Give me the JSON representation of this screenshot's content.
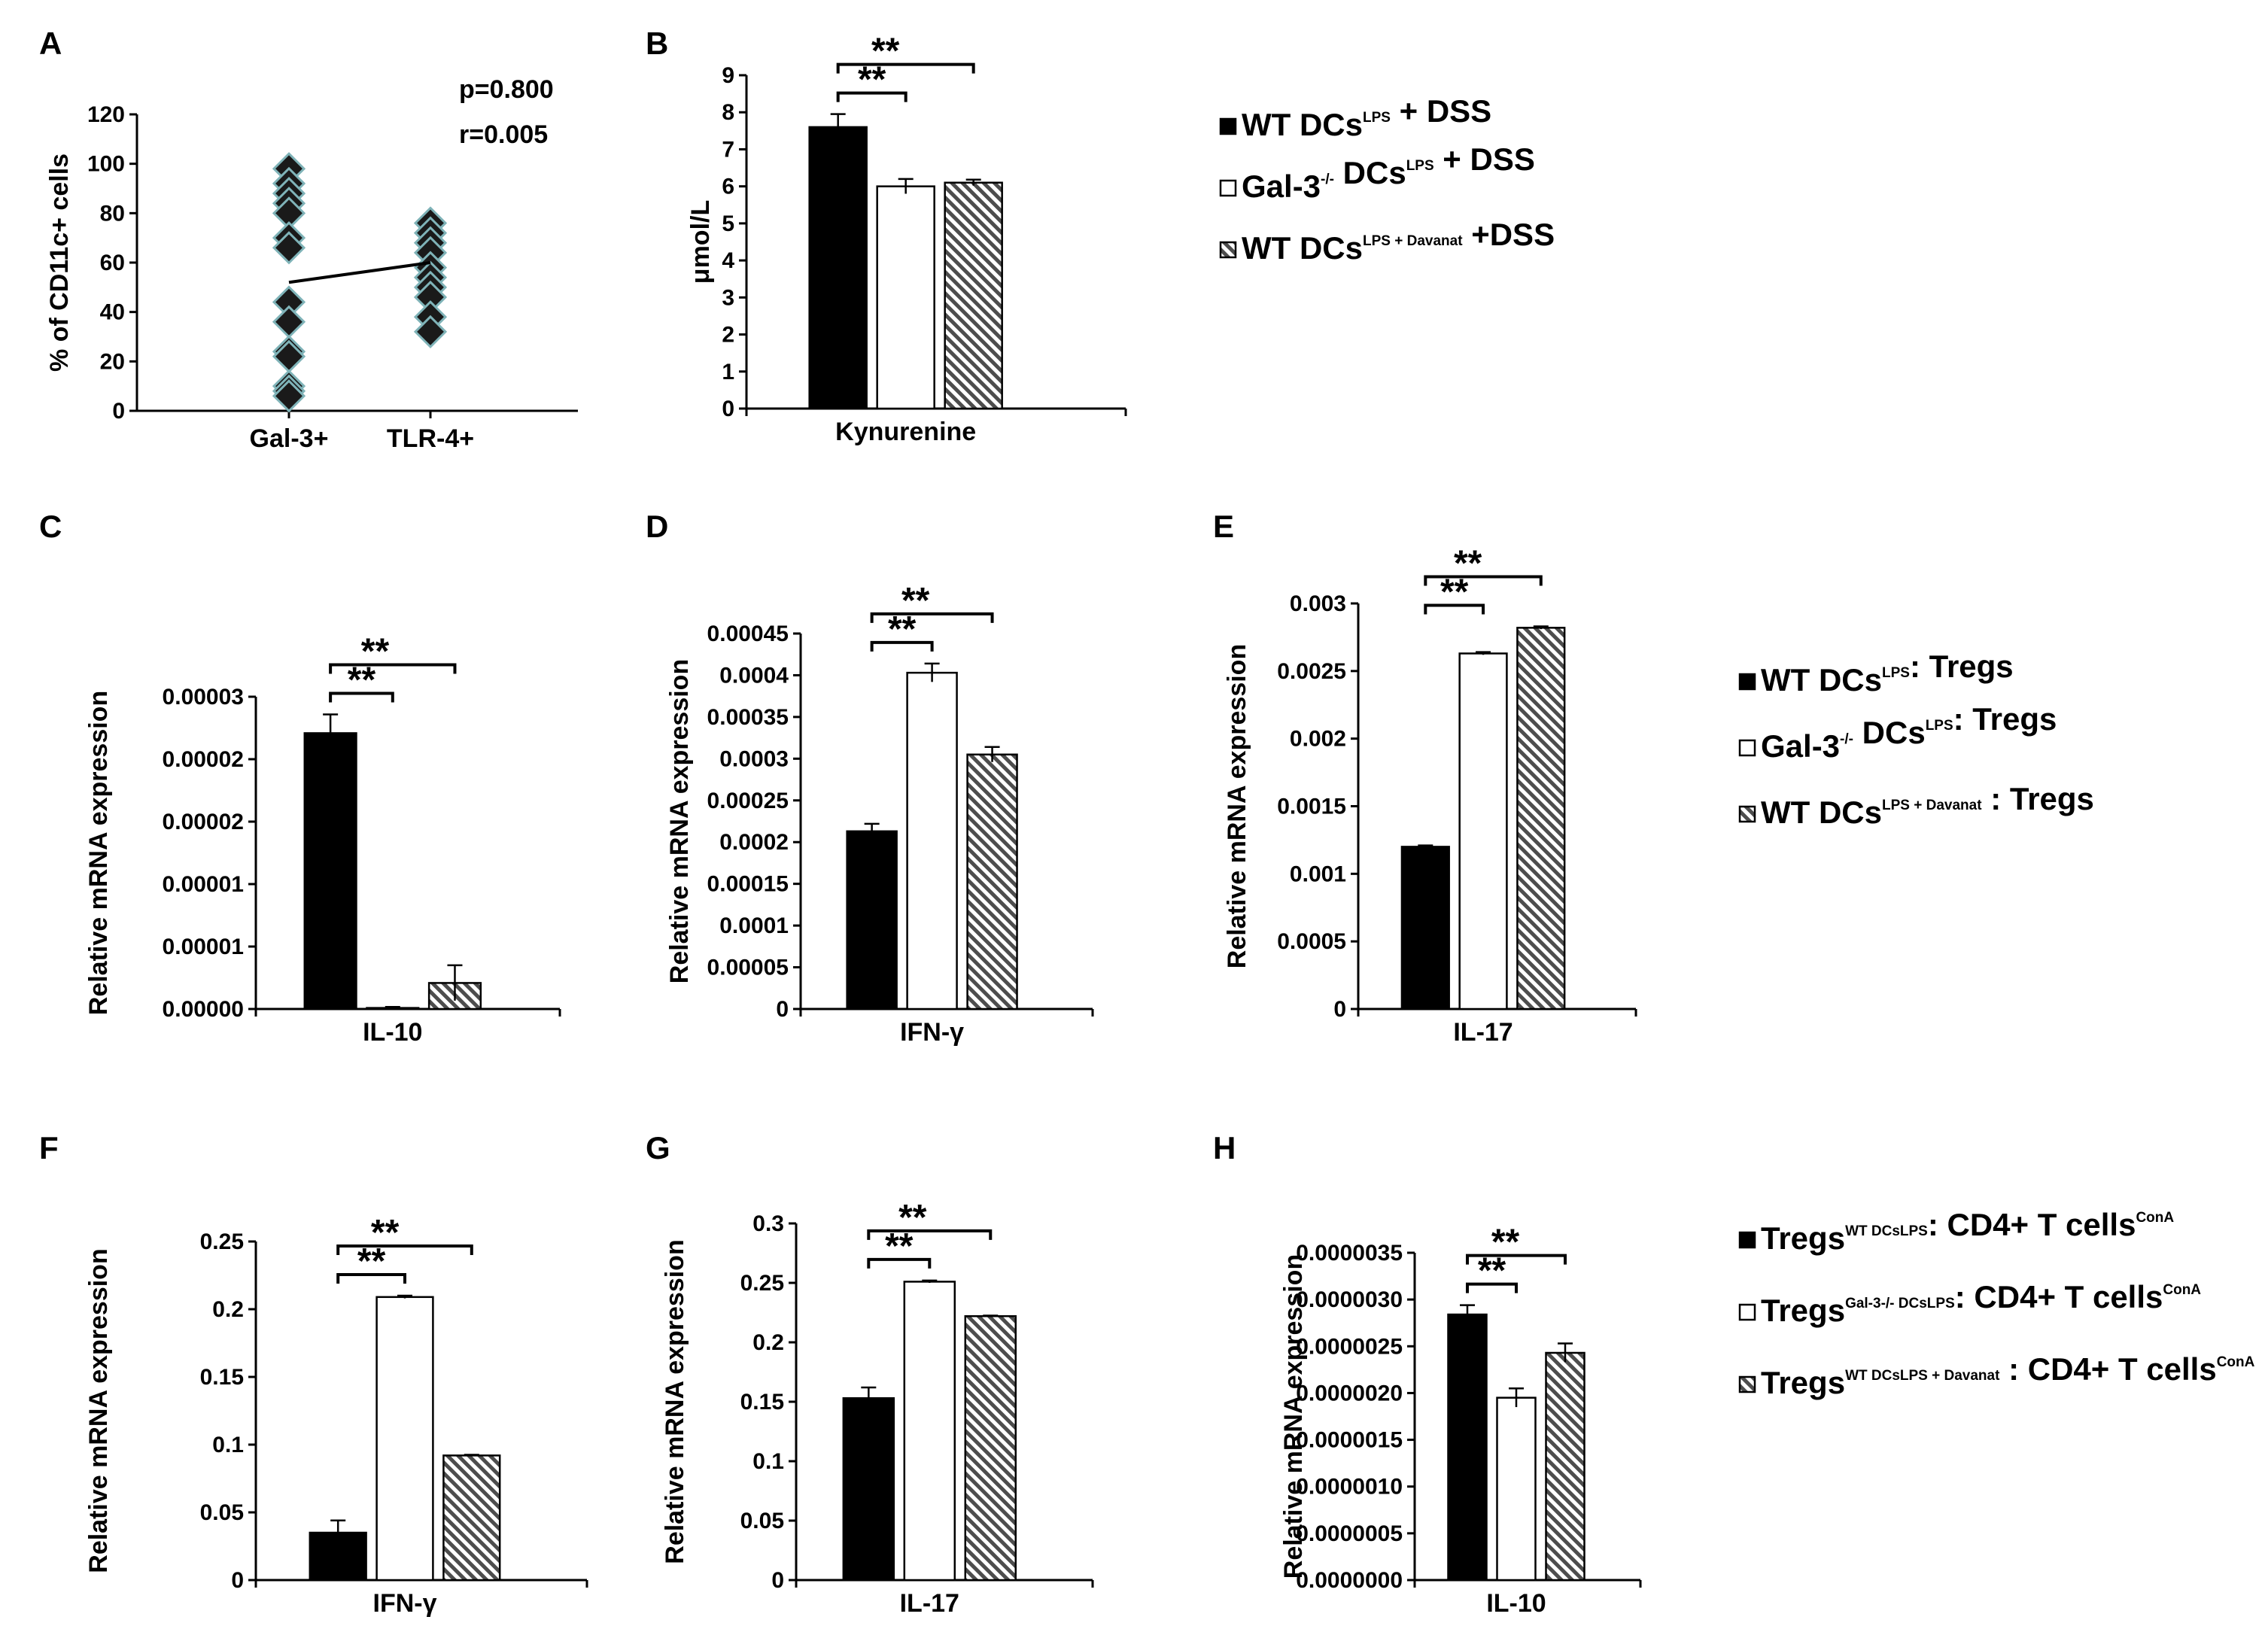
{
  "panel_labels": [
    "A",
    "B",
    "C",
    "D",
    "E",
    "F",
    "G",
    "H"
  ],
  "colors": {
    "wt": "#000000",
    "gal3": "#ffffff",
    "davanat": "#555555",
    "marker": "#1a1a1a",
    "marker_edge": "#7fb3b8"
  },
  "legends": {
    "B": [
      {
        "main": "WT DCs",
        "sup": "LPS",
        "after": " + DSS",
        "pattern": "solid"
      },
      {
        "main": "Gal-3",
        "sup": "-/-",
        "mid": " DCs",
        "sup2": "LPS",
        "after": " + DSS",
        "pattern": "open"
      },
      {
        "main": "WT DCs",
        "sup": "LPS + Davanat",
        "after": " +DSS",
        "pattern": "hatch"
      }
    ],
    "E": [
      {
        "main": "WT DCs",
        "sup": "LPS",
        "after": ": Tregs",
        "pattern": "solid"
      },
      {
        "main": "Gal-3",
        "sup": "-/-",
        "mid": " DCs",
        "sup2": "LPS",
        "after": ": Tregs",
        "pattern": "open"
      },
      {
        "main": "WT DCs",
        "sup": "LPS + Davanat",
        "after": " : Tregs",
        "pattern": "hatch"
      }
    ],
    "H": [
      {
        "main": "Tregs",
        "sup": "WT DCsLPS",
        "after": ": CD4+ T cells",
        "sup3": "ConA",
        "pattern": "solid"
      },
      {
        "main": "Tregs",
        "sup": "Gal-3-/- DCsLPS",
        "after": ": CD4+ T cells",
        "sup3": "ConA",
        "pattern": "open"
      },
      {
        "main": "Tregs",
        "sup": "WT DCsLPS + Davanat",
        "after": " : CD4+ T cells",
        "sup3": "ConA",
        "pattern": "hatch"
      }
    ]
  },
  "chart_data": [
    {
      "panel": "A",
      "type": "scatter",
      "ylabel": "% of CD11c+ cells",
      "ylim": [
        0,
        120
      ],
      "yticks": [
        "0",
        "20",
        "40",
        "60",
        "80",
        "100",
        "120"
      ],
      "categories": [
        "Gal-3+",
        "TLR-4+"
      ],
      "series": [
        {
          "name": "Gal-3+",
          "values": [
            98,
            92,
            88,
            84,
            80,
            70,
            66,
            44,
            36,
            24,
            22,
            10,
            8,
            6
          ]
        },
        {
          "name": "TLR-4+",
          "values": [
            76,
            72,
            68,
            64,
            58,
            54,
            50,
            46,
            38,
            32
          ]
        }
      ],
      "trend_line": {
        "from": 52,
        "to": 60
      },
      "annotations": [
        "p=0.800",
        "r=0.005"
      ]
    },
    {
      "panel": "B",
      "type": "bar",
      "ylabel": "μmol/L",
      "ylim": [
        0,
        9
      ],
      "yticks": [
        "0",
        "1",
        "2",
        "3",
        "4",
        "5",
        "6",
        "7",
        "8",
        "9"
      ],
      "category": "Kynurenine",
      "values": [
        7.6,
        6.0,
        6.1
      ],
      "errors": [
        0.35,
        0.2,
        0.08
      ],
      "significance": [
        "**",
        "**"
      ]
    },
    {
      "panel": "C",
      "type": "bar",
      "ylabel": "Relative mRNA expression",
      "ylim": [
        0,
        3e-05
      ],
      "yticks": [
        "0.00000",
        "0.00001",
        "0.00001",
        "0.00002",
        "0.00002",
        "0.00003"
      ],
      "category": "IL-10",
      "values": [
        2.65e-05,
        1e-07,
        2.5e-06
      ],
      "errors": [
        1.8e-06,
        1e-07,
        1.7e-06
      ],
      "significance": [
        "**",
        "**"
      ]
    },
    {
      "panel": "D",
      "type": "bar",
      "ylabel": "Relative mRNA expression",
      "ylim": [
        0,
        0.00045
      ],
      "yticks": [
        "0",
        "0.00005",
        "0.0001",
        "0.00015",
        "0.0002",
        "0.00025",
        "0.0003",
        "0.00035",
        "0.0004",
        "0.00045"
      ],
      "category": "IFN-γ",
      "values": [
        0.000213,
        0.000403,
        0.000305
      ],
      "errors": [
        9e-06,
        1.1e-05,
        9e-06
      ],
      "significance": [
        "**",
        "**"
      ]
    },
    {
      "panel": "E",
      "type": "bar",
      "ylabel": "Relative mRNA expression",
      "ylim": [
        0,
        0.003
      ],
      "yticks": [
        "0",
        "0.0005",
        "0.001",
        "0.0015",
        "0.002",
        "0.0025",
        "0.003"
      ],
      "category": "IL-17",
      "values": [
        0.0012,
        0.00263,
        0.00282
      ],
      "errors": [
        1e-05,
        1e-05,
        1e-05
      ],
      "significance": [
        "**",
        "**"
      ]
    },
    {
      "panel": "F",
      "type": "bar",
      "ylabel": "Relative mRNA expression",
      "ylim": [
        0,
        0.25
      ],
      "yticks": [
        "0",
        "0.05",
        "0.1",
        "0.15",
        "0.2",
        "0.25"
      ],
      "category": "IFN-γ",
      "values": [
        0.035,
        0.209,
        0.092
      ],
      "errors": [
        0.009,
        0.001,
        0.0005
      ],
      "significance": [
        "**",
        "**"
      ]
    },
    {
      "panel": "G",
      "type": "bar",
      "ylabel": "Relative mRNA expression",
      "ylim": [
        0,
        0.3
      ],
      "yticks": [
        "0",
        "0.05",
        "0.1",
        "0.15",
        "0.2",
        "0.25",
        "0.3"
      ],
      "category": "IL-17",
      "values": [
        0.153,
        0.251,
        0.222
      ],
      "errors": [
        0.009,
        0.001,
        0.0005
      ],
      "significance": [
        "**",
        "**"
      ]
    },
    {
      "panel": "H",
      "type": "bar",
      "ylabel": "Relative mRNA expression",
      "ylim": [
        0,
        3.5e-06
      ],
      "yticks": [
        "0.0000000",
        "0.0000005",
        "0.0000010",
        "0.0000015",
        "0.0000020",
        "0.0000025",
        "0.0000030",
        "0.0000035"
      ],
      "category": "IL-10",
      "values": [
        2.84e-06,
        1.95e-06,
        2.43e-06
      ],
      "errors": [
        1e-07,
        1e-07,
        1e-07
      ],
      "significance": [
        "**",
        "**"
      ]
    }
  ]
}
